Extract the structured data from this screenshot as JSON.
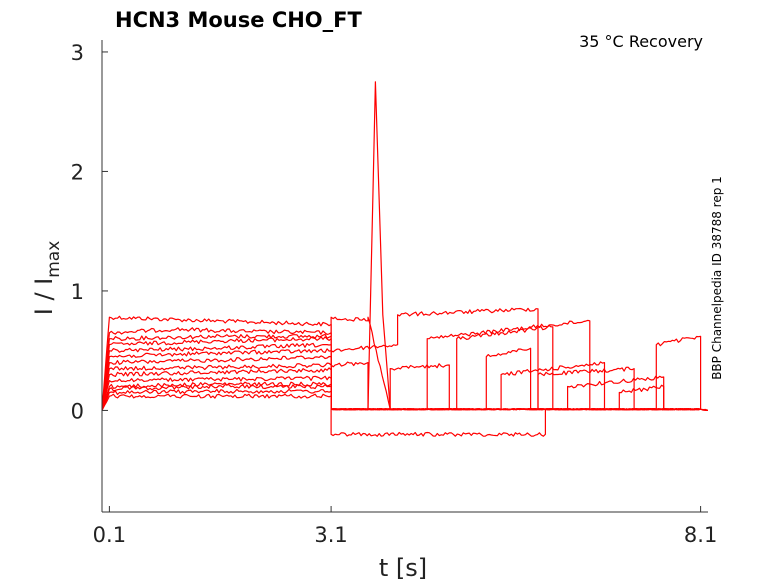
{
  "chart_data": {
    "type": "line",
    "title": "HCN3  Mouse  CHO_FT",
    "condition": "35 °C  Recovery",
    "side_label": "BBP Channelpedia ID 38788 rep 1",
    "xlabel": "t [s]",
    "ylabel_main": "I / I",
    "ylabel_sub": "max",
    "xlim": [
      0.0,
      8.2
    ],
    "ylim": [
      -0.85,
      3.1
    ],
    "xticks": [
      "0.1",
      "3.1",
      "8.1"
    ],
    "yticks": [
      "0",
      "1",
      "2",
      "3"
    ],
    "line_color": "#ff0000",
    "prepulse_end_s": 3.1,
    "series": [
      {
        "x": [
          0.0,
          0.1,
          1.0,
          2.0,
          3.1,
          3.1,
          8.1,
          8.2
        ],
        "y": [
          0.0,
          0.78,
          0.76,
          0.74,
          0.72,
          0.01,
          0.01,
          0.0
        ]
      },
      {
        "x": [
          0.0,
          0.1,
          1.0,
          2.0,
          3.1,
          3.1,
          3.6,
          3.7,
          3.8,
          3.9,
          8.1
        ],
        "y": [
          0.0,
          0.65,
          0.68,
          0.66,
          0.65,
          0.01,
          0.01,
          2.75,
          0.8,
          0.01,
          0.01
        ]
      },
      {
        "x": [
          0.0,
          0.1,
          1.5,
          3.1,
          3.1,
          3.6,
          3.6,
          3.9,
          8.1
        ],
        "y": [
          0.0,
          0.6,
          0.62,
          0.62,
          0.78,
          0.75,
          0.78,
          0.01,
          0.01
        ]
      },
      {
        "x": [
          0.0,
          0.1,
          1.5,
          3.1,
          3.1,
          4.0,
          4.0,
          5.9,
          5.9,
          8.1
        ],
        "y": [
          0.0,
          0.55,
          0.58,
          0.6,
          0.5,
          0.55,
          0.8,
          0.85,
          0.01,
          0.01
        ]
      },
      {
        "x": [
          0.0,
          0.1,
          1.5,
          3.1,
          3.1,
          4.4,
          4.4,
          6.6,
          6.6,
          8.1
        ],
        "y": [
          0.0,
          0.5,
          0.52,
          0.55,
          0.01,
          0.01,
          0.6,
          0.75,
          0.01,
          0.01
        ]
      },
      {
        "x": [
          0.0,
          0.1,
          1.5,
          3.1,
          3.1,
          4.8,
          4.8,
          6.1,
          6.1,
          8.1
        ],
        "y": [
          0.0,
          0.45,
          0.48,
          0.5,
          0.01,
          0.01,
          0.6,
          0.7,
          0.01,
          0.01
        ]
      },
      {
        "x": [
          0.0,
          0.1,
          1.5,
          3.1,
          3.1,
          5.4,
          5.4,
          6.8,
          6.8,
          8.1
        ],
        "y": [
          0.0,
          0.4,
          0.42,
          0.45,
          0.01,
          0.01,
          0.3,
          0.4,
          0.01,
          0.01
        ]
      },
      {
        "x": [
          0.0,
          0.1,
          1.5,
          3.1,
          3.1,
          5.9,
          5.9,
          7.2,
          7.2,
          8.1
        ],
        "y": [
          0.0,
          0.35,
          0.36,
          0.38,
          0.01,
          0.01,
          0.3,
          0.35,
          0.01,
          0.01
        ]
      },
      {
        "x": [
          0.0,
          0.1,
          1.5,
          3.1,
          3.1,
          6.3,
          6.3,
          7.6,
          7.6,
          8.1
        ],
        "y": [
          0.0,
          0.3,
          0.32,
          0.34,
          0.01,
          0.01,
          0.2,
          0.28,
          0.01,
          0.01
        ]
      },
      {
        "x": [
          0.0,
          0.1,
          1.5,
          3.1,
          3.1,
          7.0,
          7.0,
          7.6,
          7.6,
          8.1
        ],
        "y": [
          0.0,
          0.2,
          0.22,
          0.22,
          0.01,
          0.01,
          0.15,
          0.2,
          0.01,
          0.01
        ]
      },
      {
        "x": [
          0.0,
          0.1,
          1.5,
          3.1,
          3.1,
          7.5,
          7.5,
          8.1,
          8.1,
          8.2
        ],
        "y": [
          0.0,
          0.15,
          0.16,
          0.16,
          0.01,
          0.01,
          0.55,
          0.62,
          0.01,
          0.0
        ]
      },
      {
        "x": [
          0.0,
          0.1,
          1.5,
          3.1,
          3.1,
          6.0,
          6.0,
          8.1
        ],
        "y": [
          0.0,
          0.12,
          0.12,
          0.12,
          -0.2,
          -0.2,
          0.01,
          0.01
        ]
      },
      {
        "x": [
          0.0,
          0.1,
          1.5,
          3.1,
          3.1,
          3.6,
          3.6,
          3.9,
          3.9,
          4.7,
          4.7,
          8.1
        ],
        "y": [
          0.0,
          0.18,
          0.2,
          0.2,
          0.38,
          0.4,
          0.01,
          0.01,
          0.35,
          0.38,
          0.01,
          0.01
        ]
      },
      {
        "x": [
          0.0,
          0.1,
          1.5,
          3.1,
          3.1,
          5.2,
          5.2,
          5.8,
          5.8,
          8.1
        ],
        "y": [
          0.0,
          0.25,
          0.26,
          0.27,
          0.01,
          0.01,
          0.45,
          0.52,
          0.01,
          0.01
        ]
      }
    ]
  }
}
